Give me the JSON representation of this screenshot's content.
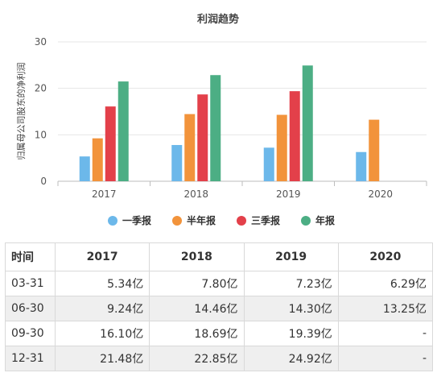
{
  "chart_data": {
    "type": "bar",
    "title": "利润趋势",
    "ylabel": "归属母公司股东的净利润",
    "xlabel": "",
    "categories": [
      "2017",
      "2018",
      "2019",
      "2020"
    ],
    "ylim": [
      0,
      30
    ],
    "yticks": [
      0,
      10,
      20,
      30
    ],
    "grid": true,
    "legend_position": "bottom",
    "series": [
      {
        "name": "一季报",
        "color": "#6cb8ea",
        "values": [
          5.34,
          7.8,
          7.23,
          6.29
        ]
      },
      {
        "name": "半年报",
        "color": "#f2933b",
        "values": [
          9.24,
          14.46,
          14.3,
          13.25
        ]
      },
      {
        "name": "三季报",
        "color": "#e3404a",
        "values": [
          16.1,
          18.69,
          19.39,
          null
        ]
      },
      {
        "name": "年报",
        "color": "#4cae84",
        "values": [
          21.48,
          22.85,
          24.92,
          null
        ]
      }
    ]
  },
  "table": {
    "header": [
      "时间",
      "2017",
      "2018",
      "2019",
      "2020"
    ],
    "rows": [
      [
        "03-31",
        "5.34亿",
        "7.80亿",
        "7.23亿",
        "6.29亿"
      ],
      [
        "06-30",
        "9.24亿",
        "14.46亿",
        "14.30亿",
        "13.25亿"
      ],
      [
        "09-30",
        "16.10亿",
        "18.69亿",
        "19.39亿",
        "-"
      ],
      [
        "12-31",
        "21.48亿",
        "22.85亿",
        "24.92亿",
        "-"
      ]
    ]
  }
}
